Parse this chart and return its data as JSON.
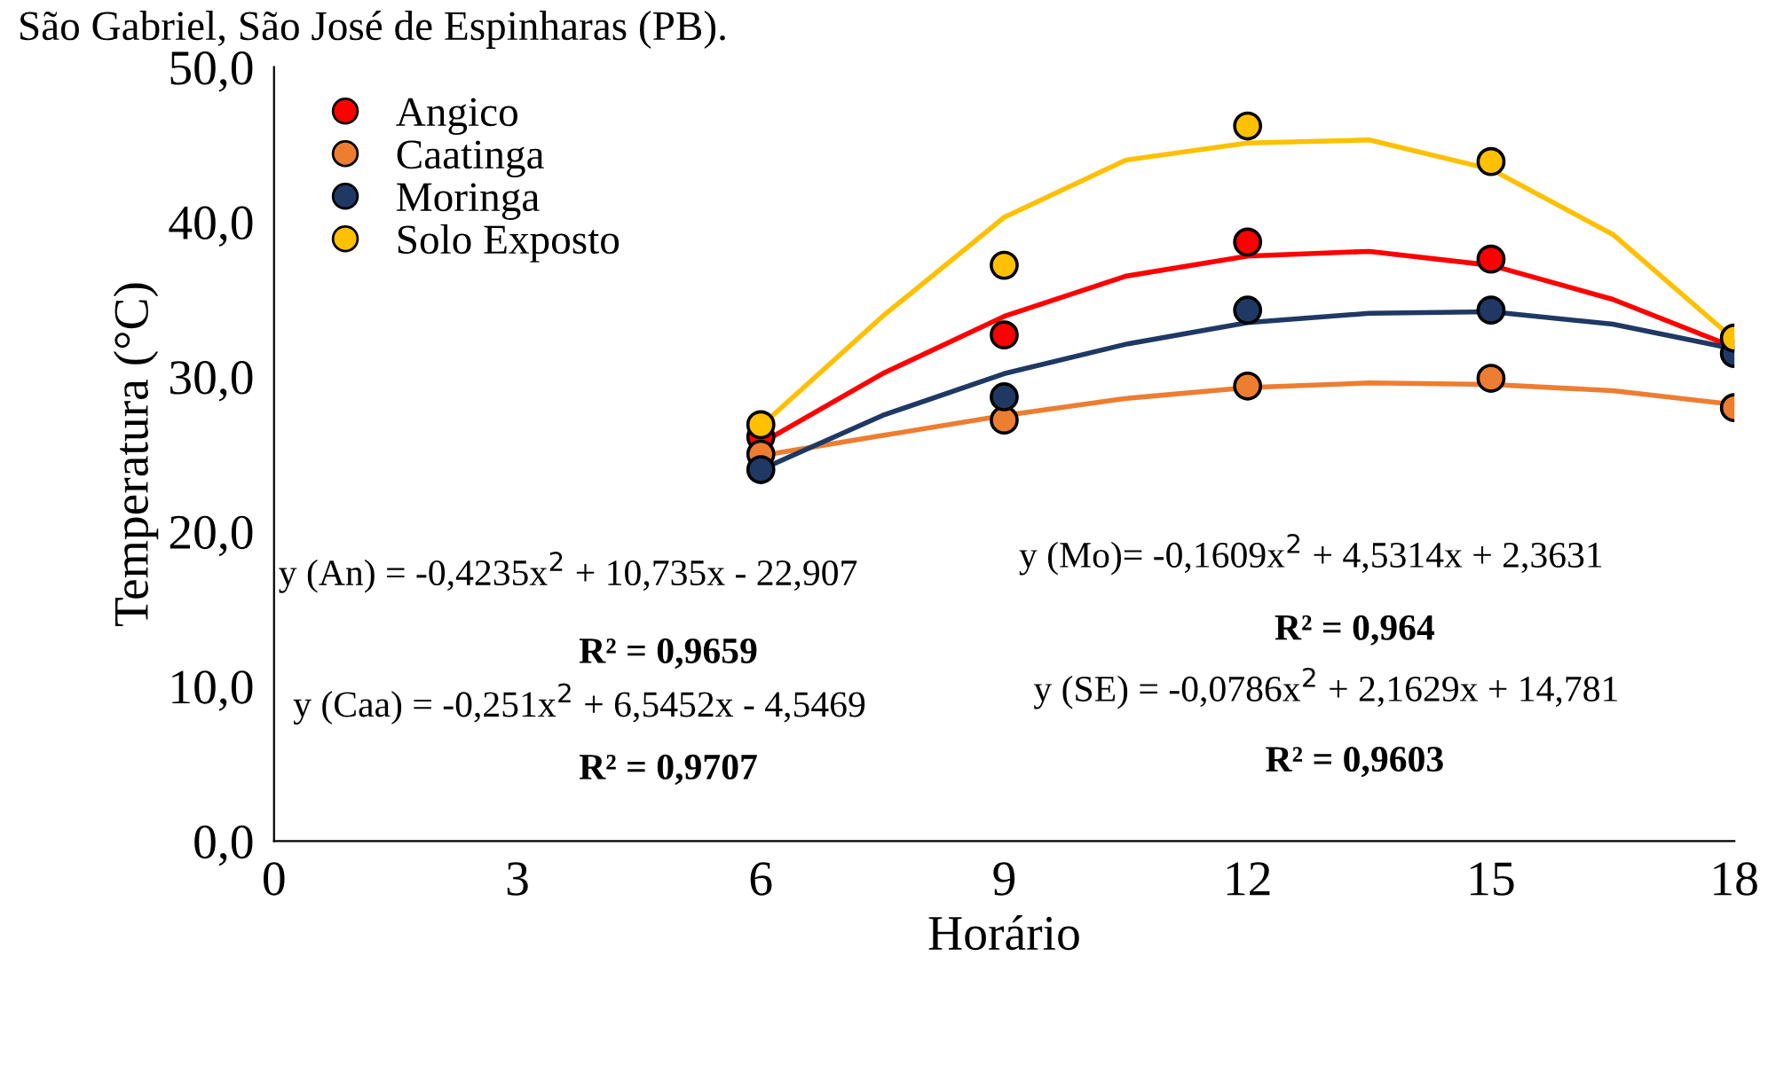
{
  "chart_data": {
    "type": "scatter",
    "xlabel": "Horário",
    "ylabel": "Temperatura (°C)",
    "xlim": [
      0,
      18
    ],
    "xticks": [
      0,
      3,
      6,
      9,
      12,
      15,
      18
    ],
    "ylim": [
      0,
      50
    ],
    "yticks": [
      {
        "value": 0,
        "label": "0,0"
      },
      {
        "value": 10,
        "label": "10,0"
      },
      {
        "value": 20,
        "label": "20,0"
      },
      {
        "value": 30,
        "label": "30,0"
      },
      {
        "value": 40,
        "label": "40,0"
      },
      {
        "value": 50,
        "label": "50,0"
      }
    ],
    "grid": false,
    "legend": "top left",
    "marker": "circle",
    "x": [
      6,
      9,
      12,
      15,
      18
    ],
    "series": [
      {
        "name": "Angico",
        "color": "#ff0000",
        "values": [
          26.1,
          32.7,
          38.7,
          37.6,
          null
        ]
      },
      {
        "name": "Caatinga",
        "color": "#ed7d31",
        "values": [
          25.0,
          27.2,
          29.4,
          29.9,
          28.0
        ]
      },
      {
        "name": "Moringa",
        "color": "#1f3864",
        "values": [
          24.0,
          28.7,
          34.3,
          34.3,
          31.5
        ]
      },
      {
        "name": "Solo Exposto",
        "color": "#ffc000",
        "values": [
          26.9,
          37.2,
          46.2,
          43.9,
          32.5
        ]
      },
      {
        "type": "line",
        "color": "#ff0000",
        "marker": "none",
        "x": [
          6,
          7.5,
          9,
          10.5,
          12,
          13.5,
          15,
          16.5,
          18
        ],
        "values": [
          25.7,
          30.2,
          33.9,
          36.5,
          37.8,
          38.1,
          37.2,
          35.0,
          31.9
        ]
      },
      {
        "type": "line",
        "color": "#ed7d31",
        "marker": "none",
        "x": [
          6,
          7.5,
          9,
          10.5,
          12,
          13.5,
          15,
          16.5,
          18
        ],
        "values": [
          24.9,
          26.2,
          27.5,
          28.6,
          29.3,
          29.6,
          29.5,
          29.1,
          28.2
        ]
      },
      {
        "type": "line",
        "color": "#1f3864",
        "marker": "none",
        "x": [
          6,
          7.5,
          9,
          10.5,
          12,
          13.5,
          15,
          16.5,
          18
        ],
        "values": [
          24.0,
          27.5,
          30.2,
          32.1,
          33.5,
          34.1,
          34.2,
          33.4,
          31.8
        ]
      },
      {
        "type": "line",
        "color": "#ffc000",
        "marker": "none",
        "x": [
          6,
          7.5,
          9,
          10.5,
          12,
          13.5,
          15,
          16.5,
          18
        ],
        "values": [
          26.8,
          33.9,
          40.3,
          44.0,
          45.1,
          45.3,
          43.4,
          39.2,
          32.4
        ]
      }
    ],
    "annotations": [
      "São Gabriel, São José de Espinharas (PB).",
      "y (An) = -0,4235x$^{2}$ + 10,735x - 22,907",
      "R² = 0,9659",
      "y (Caa) = -0,251x$^{2}$ + 6,5452x - 4,5469",
      "R² = 0,9707",
      "y (Mo)= -0,1609x$^{2}$ + 4,5314x + 2,3631",
      "R² = 0,964",
      "y (SE) = -0,0786x$^{2}$ + 2,1629x + 14,781",
      "R² = 0,9603"
    ]
  }
}
